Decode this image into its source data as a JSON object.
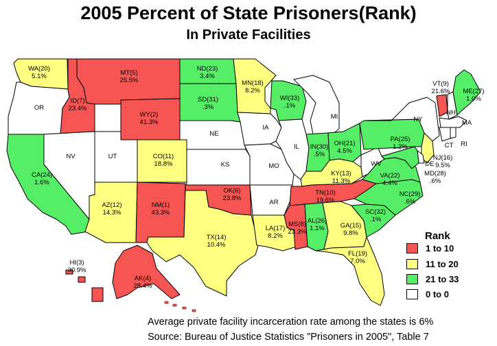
{
  "title": "2005 Percent of State Prisoners(Rank)",
  "subtitle": "In Private Facilities",
  "colors": {
    "red": "#f75454",
    "yellow": "#ffff80",
    "green": "#55ee66",
    "white": "#ffffff"
  },
  "legend": {
    "title": "Rank",
    "items": [
      {
        "label": "1 to 10",
        "color": "red"
      },
      {
        "label": "11 to 20",
        "color": "yellow"
      },
      {
        "label": "21 to 33",
        "color": "green"
      },
      {
        "label": "0 to  0",
        "color": "white"
      }
    ]
  },
  "notes": {
    "average": "Average private facility incarceration rate among the states is 6%",
    "source": "Source: Bureau of Justice Statistics \"Prisoners in 2005\", Table 7"
  },
  "states": [
    {
      "id": "WA",
      "name": "WA(20)",
      "value": "5.1%",
      "fill": "yellow"
    },
    {
      "id": "OR",
      "name": "OR",
      "value": "",
      "fill": "white"
    },
    {
      "id": "CA",
      "name": "CA(24)",
      "value": "1.6%",
      "fill": "green"
    },
    {
      "id": "ID",
      "name": "ID(7)",
      "value": "23.4%",
      "fill": "red"
    },
    {
      "id": "NV",
      "name": "NV",
      "value": "",
      "fill": "white"
    },
    {
      "id": "MT",
      "name": "MT(5)",
      "value": "25.5%",
      "fill": "red"
    },
    {
      "id": "WY",
      "name": "WY(2)",
      "value": "41.3%",
      "fill": "red"
    },
    {
      "id": "UT",
      "name": "UT",
      "value": "",
      "fill": "white"
    },
    {
      "id": "AZ",
      "name": "AZ(12)",
      "value": "14.3%",
      "fill": "yellow"
    },
    {
      "id": "CO",
      "name": "CO(11)",
      "value": "18.8%",
      "fill": "yellow"
    },
    {
      "id": "NM",
      "name": "NM(1)",
      "value": "43.3%",
      "fill": "red"
    },
    {
      "id": "ND",
      "name": "ND(23)",
      "value": "3.4%",
      "fill": "green"
    },
    {
      "id": "SD",
      "name": "SD(31)",
      "value": ".3%",
      "fill": "green"
    },
    {
      "id": "NE",
      "name": "NE",
      "value": "",
      "fill": "white"
    },
    {
      "id": "KS",
      "name": "KS",
      "value": "",
      "fill": "white"
    },
    {
      "id": "OK",
      "name": "OK(6)",
      "value": "23.8%",
      "fill": "red"
    },
    {
      "id": "TX",
      "name": "TX(14)",
      "value": "10.4%",
      "fill": "yellow"
    },
    {
      "id": "MN",
      "name": "MN(18)",
      "value": "8.2%",
      "fill": "yellow"
    },
    {
      "id": "IA",
      "name": "IA",
      "value": "",
      "fill": "white"
    },
    {
      "id": "MO",
      "name": "MO",
      "value": "",
      "fill": "white"
    },
    {
      "id": "AR",
      "name": "AR",
      "value": "",
      "fill": "white"
    },
    {
      "id": "LA",
      "name": "LA(17)",
      "value": "8.2%",
      "fill": "yellow"
    },
    {
      "id": "WI",
      "name": "WI(33)",
      "value": ".1%",
      "fill": "green"
    },
    {
      "id": "IL",
      "name": "IL",
      "value": "",
      "fill": "white"
    },
    {
      "id": "MI",
      "name": "MI",
      "value": "",
      "fill": "white"
    },
    {
      "id": "IN",
      "name": "IN(30)",
      "value": ".5%",
      "fill": "green"
    },
    {
      "id": "OH",
      "name": "OH(21)",
      "value": "4.5%",
      "fill": "green"
    },
    {
      "id": "KY",
      "name": "KY(13)",
      "value": "11.3%",
      "fill": "yellow"
    },
    {
      "id": "TN",
      "name": "TN(10)",
      "value": "19.6%",
      "fill": "red"
    },
    {
      "id": "MS",
      "name": "MS(8)",
      "value": "23.3%",
      "fill": "red"
    },
    {
      "id": "AL",
      "name": "AL(26)",
      "value": "1.1%",
      "fill": "green"
    },
    {
      "id": "GA",
      "name": "GA(15)",
      "value": "9.8%",
      "fill": "yellow"
    },
    {
      "id": "FL",
      "name": "FL(19)",
      "value": "7.0%",
      "fill": "yellow"
    },
    {
      "id": "SC",
      "name": "SC(32)",
      "value": ".1%",
      "fill": "green"
    },
    {
      "id": "NC",
      "name": "NC(29)",
      "value": ".6%",
      "fill": "green"
    },
    {
      "id": "VA",
      "name": "VA(22)",
      "value": "4.4%",
      "fill": "green"
    },
    {
      "id": "WV",
      "name": "WV",
      "value": "",
      "fill": "white"
    },
    {
      "id": "PA",
      "name": "PA(25)",
      "value": "1.2%",
      "fill": "green"
    },
    {
      "id": "NY",
      "name": "NY",
      "value": "",
      "fill": "white"
    },
    {
      "id": "VT",
      "name": "VT(9)",
      "value": "21.6%",
      "fill": "red"
    },
    {
      "id": "NH",
      "name": "NH",
      "value": "",
      "fill": "white"
    },
    {
      "id": "ME",
      "name": "ME(27)",
      "value": "1.0%",
      "fill": "green"
    },
    {
      "id": "MA",
      "name": "MA",
      "value": "",
      "fill": "white"
    },
    {
      "id": "CT",
      "name": "CT",
      "value": "",
      "fill": "white"
    },
    {
      "id": "RI",
      "name": "RI",
      "value": "",
      "fill": "white"
    },
    {
      "id": "NJ",
      "name": "NJ(16)",
      "value": "9.5%",
      "fill": "yellow"
    },
    {
      "id": "DE",
      "name": "DE",
      "value": "",
      "fill": "white"
    },
    {
      "id": "MD",
      "name": "MD(28)",
      "value": ".6%",
      "fill": "green"
    },
    {
      "id": "AK",
      "name": "AK(4)",
      "value": "28.4%",
      "fill": "red"
    },
    {
      "id": "HI",
      "name": "HI(3)",
      "value": "30.9%",
      "fill": "red"
    }
  ]
}
